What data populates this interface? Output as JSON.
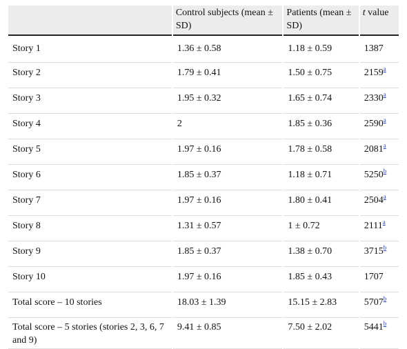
{
  "table": {
    "headers": {
      "col1": "",
      "col2": "Control subjects (mean ± SD)",
      "col3": "Patients (mean ± SD)",
      "col4_italic": "t",
      "col4_rest": " value"
    },
    "rows": [
      {
        "label": "Story 1",
        "control": "1.36 ± 0.58",
        "patients": "1.18 ± 0.59",
        "t": "1387",
        "note": ""
      },
      {
        "label": "Story 2",
        "control": "1.79 ± 0.41",
        "patients": "1.50 ± 0.75",
        "t": "2159",
        "note": "a"
      },
      {
        "label": "Story 3",
        "control": "1.95 ± 0.32",
        "patients": "1.65 ± 0.74",
        "t": "2330",
        "note": "a"
      },
      {
        "label": "Story 4",
        "control": "2",
        "patients": "1.85 ± 0.36",
        "t": "2590",
        "note": "a"
      },
      {
        "label": "Story 5",
        "control": "1.97 ± 0.16",
        "patients": "1.78 ± 0.58",
        "t": "2081",
        "note": "a"
      },
      {
        "label": "Story 6",
        "control": "1.85 ± 0.37",
        "patients": "1.18 ± 0.71",
        "t": "5250",
        "note": "b"
      },
      {
        "label": "Story 7",
        "control": "1.97 ± 0.16",
        "patients": "1.80 ± 0.41",
        "t": "2504",
        "note": "a"
      },
      {
        "label": "Story 8",
        "control": "1.31 ± 0.57",
        "patients": "1 ± 0.72",
        "t": "2111",
        "note": "a"
      },
      {
        "label": "Story 9",
        "control": "1.85 ± 0.37",
        "patients": "1.38 ± 0.70",
        "t": "3715",
        "note": "b"
      },
      {
        "label": "Story 10",
        "control": "1.97 ± 0.16",
        "patients": "1.85 ± 0.43",
        "t": "1707",
        "note": ""
      },
      {
        "label": "Total score – 10 stories",
        "control": "18.03 ± 1.39",
        "patients": "15.15 ± 2.83",
        "t": "5707",
        "note": "b"
      },
      {
        "label": "Total score – 5 stories (stories 2, 3, 6, 7 and 9)",
        "control": "9.41 ± 0.85",
        "patients": "7.50 ± 2.02",
        "t": "5441",
        "note": "b"
      }
    ]
  }
}
